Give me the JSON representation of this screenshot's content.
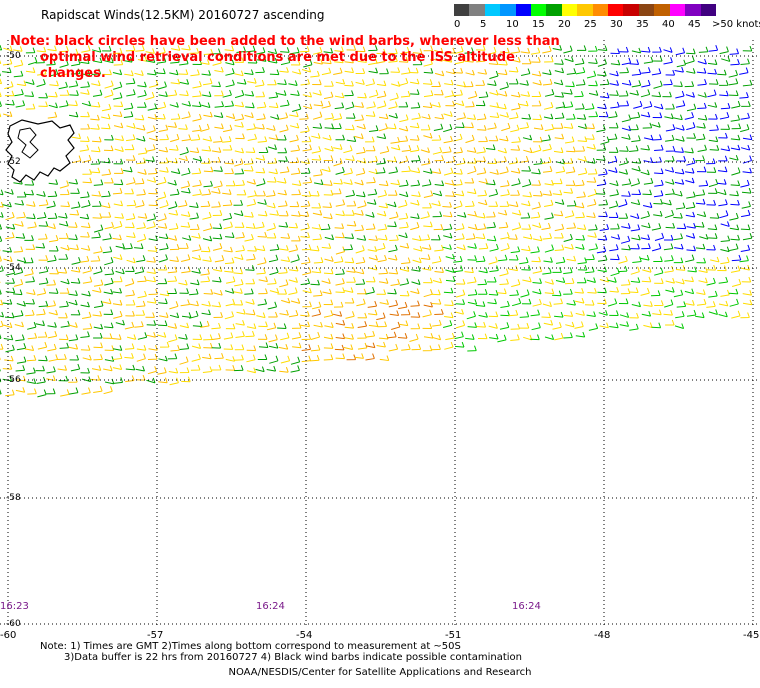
{
  "title": "Rapidscat Winds(12.5KM) 20160727 ascending",
  "note": {
    "line1": "Note: black circles have been added to the wind barbs, wherever less than",
    "line2": "optimal wind retrieval conditions are met due to the ISS altitude changes."
  },
  "legend": {
    "colors": [
      "#404040",
      "#808080",
      "#00c8ff",
      "#0096ff",
      "#0000ff",
      "#00ff00",
      "#00a000",
      "#ffff00",
      "#ffc800",
      "#ff8c00",
      "#ff0000",
      "#c80000",
      "#8b4513",
      "#c06000",
      "#ff00ff",
      "#8000c0",
      "#400080"
    ],
    "labels": [
      "0",
      "5",
      "10",
      "15",
      "20",
      "25",
      "30",
      "35",
      "40",
      "45",
      ">50 knots"
    ]
  },
  "lat_labels": [
    "-50",
    "-52",
    "-54",
    "-56",
    "-58",
    "-60"
  ],
  "lon_labels": [
    "-60",
    "-57",
    "-54",
    "-51",
    "-48",
    "-45"
  ],
  "time_labels": [
    "16:23",
    "16:24",
    "16:24"
  ],
  "footer": {
    "line1": "Note: 1) Times are GMT 2)Times along bottom correspond to measurement at ~50S",
    "line2": "3)Data buffer is 22 hrs from 20160727 4) Black wind barbs indicate possible contamination",
    "credit": "NOAA/NESDIS/Center for Satellite Applications and Research"
  },
  "icons": {
    "map": "wind-barb-map",
    "land": "falkland-islands-landmass"
  }
}
